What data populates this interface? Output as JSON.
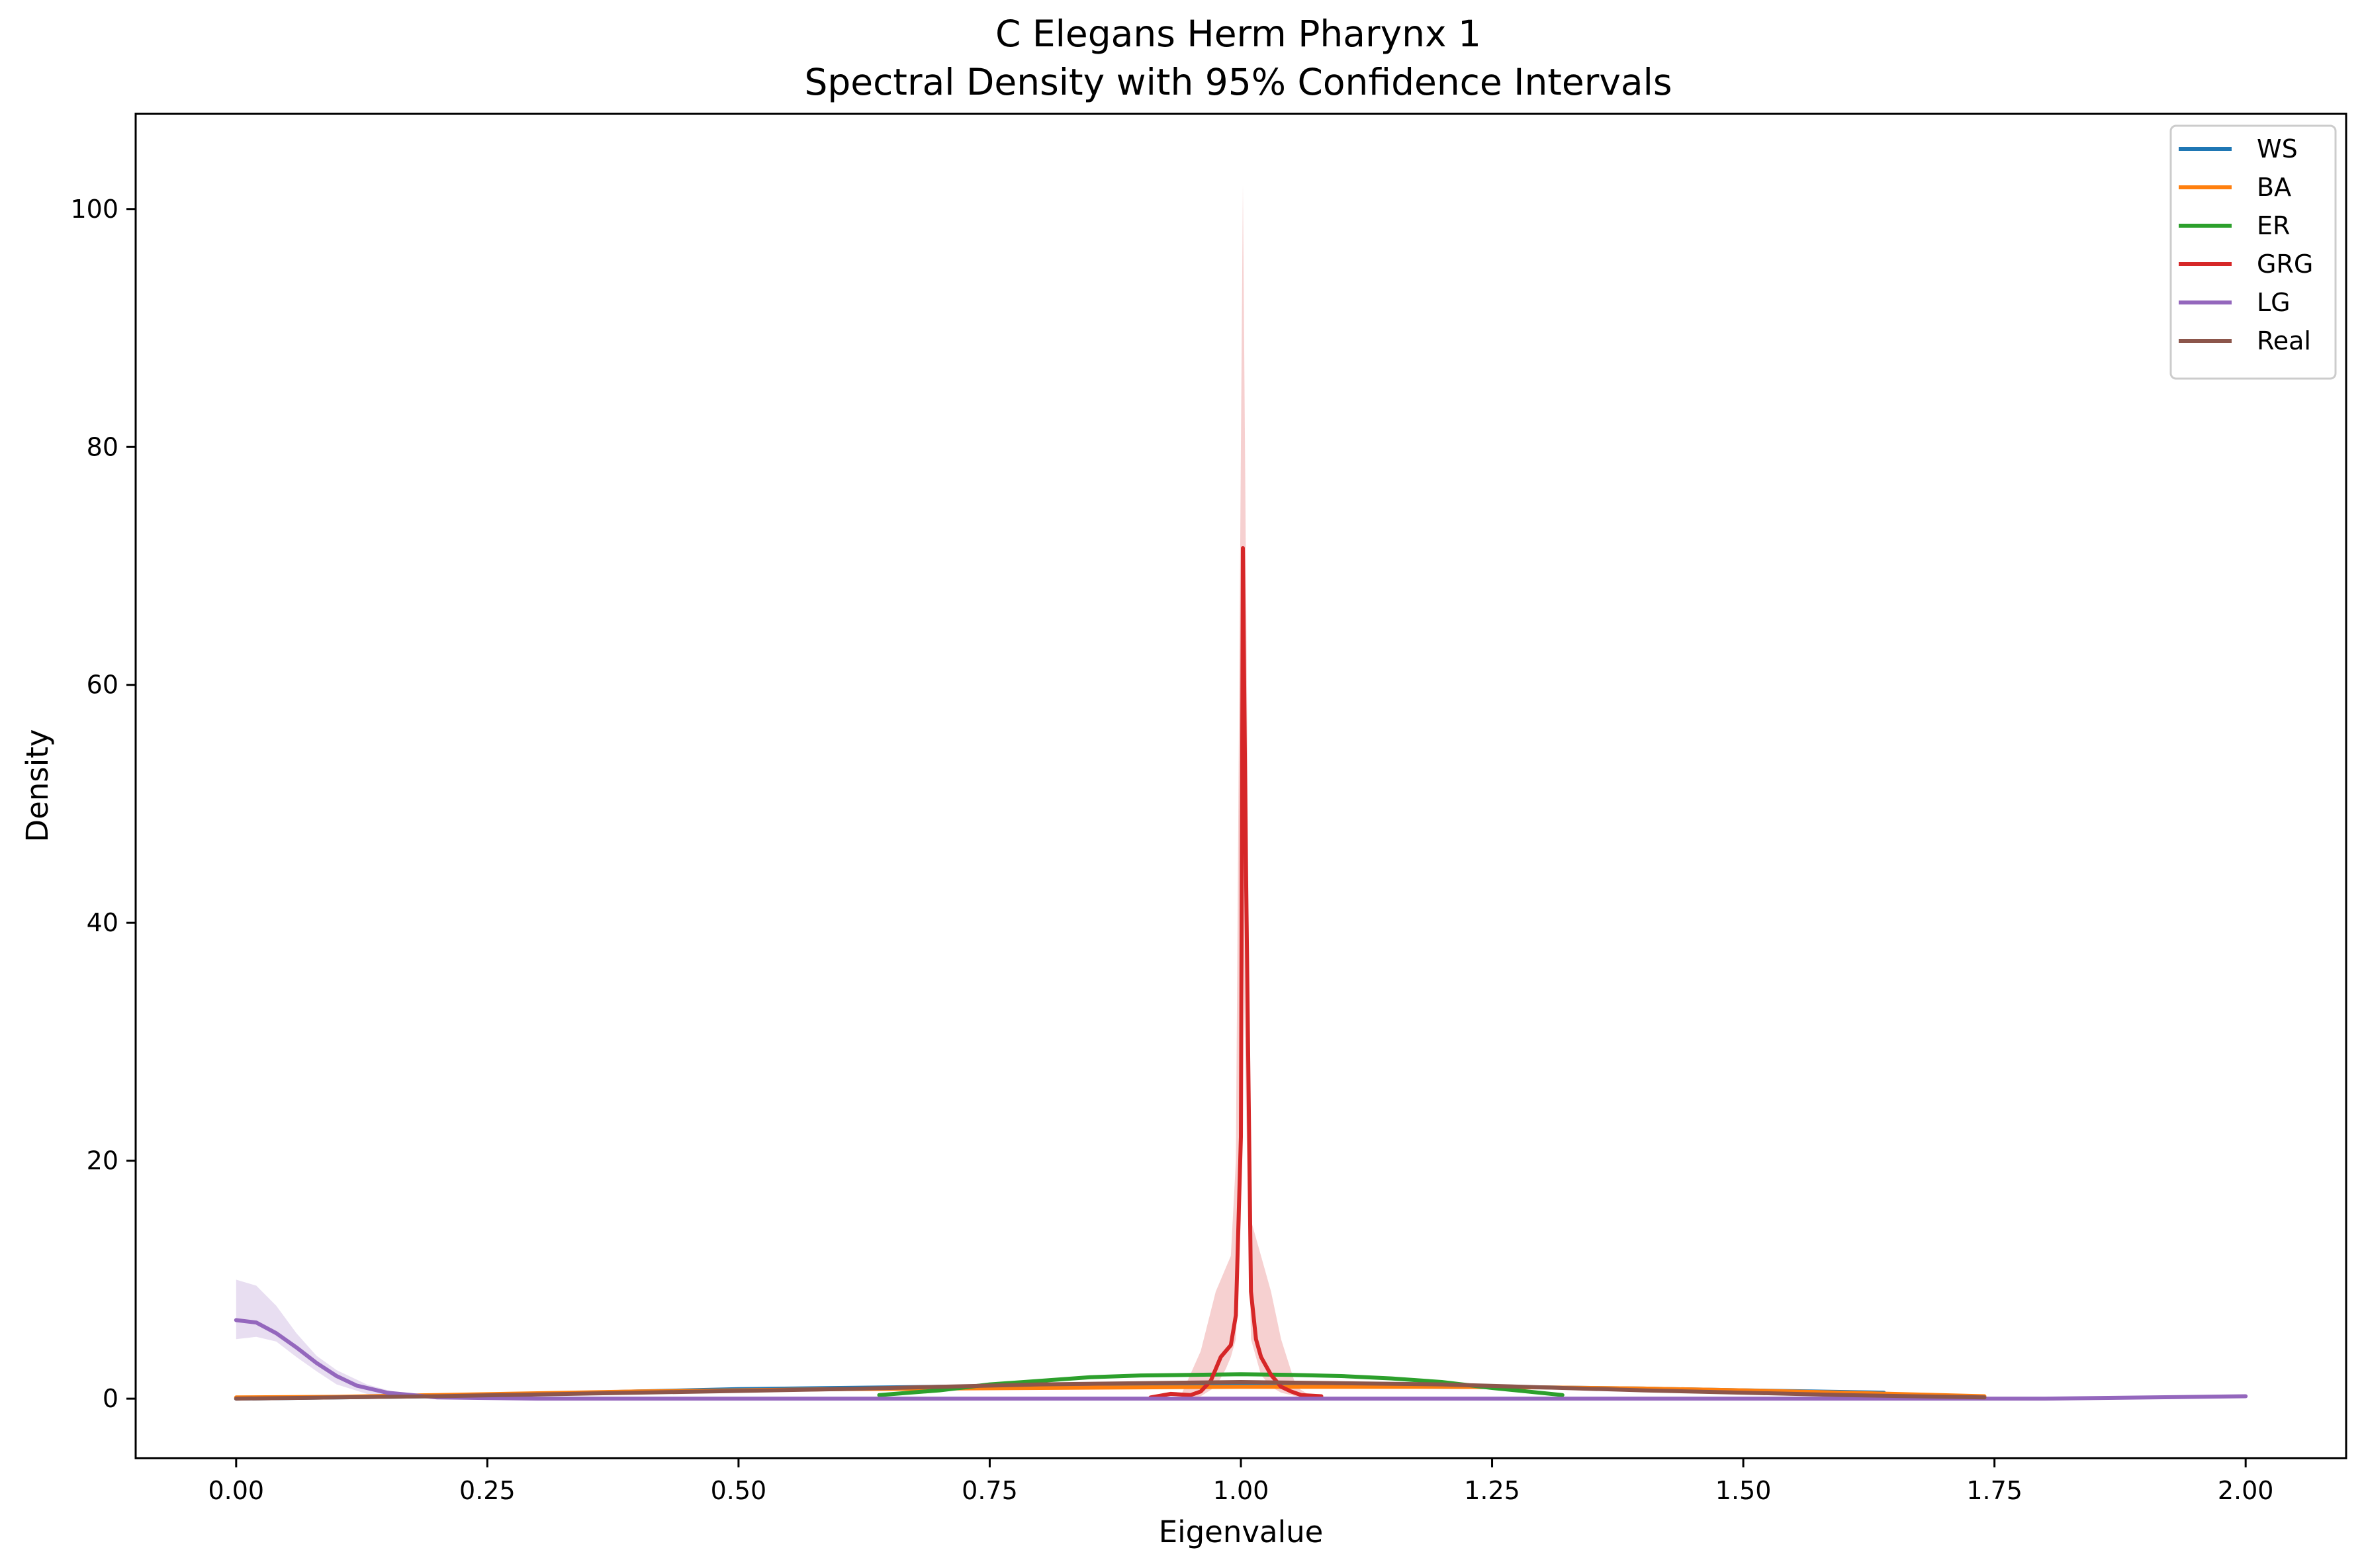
{
  "chart_data": {
    "type": "line",
    "title": "C Elegans Herm Pharynx 1",
    "subtitle": "Spectral Density with 95% Confidence Intervals",
    "xlabel": "Eigenvalue",
    "ylabel": "Density",
    "xlim": [
      -0.1,
      2.1
    ],
    "ylim": [
      -5,
      108
    ],
    "xticks": [
      "0.00",
      "0.25",
      "0.50",
      "0.75",
      "1.00",
      "1.25",
      "1.50",
      "1.75",
      "2.00"
    ],
    "xtick_values": [
      0,
      0.25,
      0.5,
      0.75,
      1.0,
      1.25,
      1.5,
      1.75,
      2.0
    ],
    "yticks": [
      "0",
      "20",
      "40",
      "60",
      "80",
      "100"
    ],
    "ytick_values": [
      0,
      20,
      40,
      60,
      80,
      100
    ],
    "grid": false,
    "legend_position": "top-right",
    "series": [
      {
        "name": "WS",
        "color": "#1f77b4",
        "x": [
          0,
          0.1,
          0.2,
          0.3,
          0.4,
          0.5,
          0.6,
          0.7,
          0.8,
          0.9,
          1.0,
          1.1,
          1.2,
          1.3,
          1.4,
          1.5,
          1.64
        ],
        "y": [
          0.0,
          0.1,
          0.2,
          0.4,
          0.6,
          0.8,
          0.9,
          1.0,
          1.05,
          1.1,
          1.1,
          1.05,
          1.0,
          0.95,
          0.85,
          0.7,
          0.5
        ]
      },
      {
        "name": "BA",
        "color": "#ff7f0e",
        "x": [
          0,
          0.1,
          0.2,
          0.3,
          0.4,
          0.5,
          0.6,
          0.7,
          0.8,
          0.9,
          1.0,
          1.1,
          1.2,
          1.3,
          1.4,
          1.5,
          1.6,
          1.74
        ],
        "y": [
          0.1,
          0.15,
          0.3,
          0.45,
          0.6,
          0.7,
          0.8,
          0.85,
          0.9,
          0.95,
          1.0,
          1.0,
          1.0,
          0.95,
          0.85,
          0.7,
          0.5,
          0.2
        ]
      },
      {
        "name": "ER",
        "color": "#2ca02c",
        "x": [
          0.64,
          0.7,
          0.75,
          0.8,
          0.85,
          0.9,
          0.95,
          1.0,
          1.05,
          1.1,
          1.15,
          1.2,
          1.25,
          1.32
        ],
        "y": [
          0.3,
          0.7,
          1.2,
          1.5,
          1.8,
          1.95,
          2.0,
          2.05,
          2.0,
          1.9,
          1.7,
          1.4,
          0.9,
          0.3
        ]
      },
      {
        "name": "GRG",
        "color": "#d62728",
        "x": [
          0.91,
          0.93,
          0.95,
          0.96,
          0.97,
          0.98,
          0.99,
          0.995,
          1.0,
          1.002,
          1.005,
          1.01,
          1.015,
          1.02,
          1.03,
          1.04,
          1.05,
          1.06,
          1.08
        ],
        "y": [
          0.1,
          0.4,
          0.3,
          0.6,
          1.5,
          3.5,
          4.5,
          7,
          22,
          71.5,
          45,
          9,
          5,
          3.5,
          2,
          1,
          0.6,
          0.3,
          0.2
        ]
      },
      {
        "name": "LG",
        "color": "#9467bd",
        "x": [
          0.0,
          0.02,
          0.04,
          0.06,
          0.08,
          0.1,
          0.12,
          0.15,
          0.2,
          0.3,
          0.5,
          1.0,
          1.5,
          1.8,
          2.0
        ],
        "y": [
          6.6,
          6.4,
          5.5,
          4.3,
          3.0,
          1.9,
          1.1,
          0.5,
          0.1,
          0.0,
          0.0,
          0.0,
          0.0,
          0.0,
          0.2
        ]
      },
      {
        "name": "Real",
        "color": "#8c564b",
        "x": [
          0.0,
          0.2,
          0.4,
          0.6,
          0.8,
          1.0,
          1.2,
          1.4,
          1.6,
          1.74
        ],
        "y": [
          0.0,
          0.2,
          0.5,
          0.8,
          1.2,
          1.4,
          1.2,
          0.7,
          0.3,
          0.1
        ]
      }
    ],
    "confidence_bands": [
      {
        "series": "LG",
        "color": "#9467bd",
        "x": [
          0.0,
          0.02,
          0.04,
          0.06,
          0.08,
          0.1,
          0.13,
          0.16,
          0.2,
          0.25
        ],
        "lower": [
          5.0,
          5.2,
          4.8,
          3.5,
          2.3,
          1.2,
          0.4,
          0.1,
          0.0,
          0.0
        ],
        "upper": [
          10.0,
          9.5,
          7.8,
          5.5,
          3.6,
          2.4,
          1.2,
          0.5,
          0.2,
          0.0
        ]
      },
      {
        "series": "GRG",
        "color": "#d62728",
        "x": [
          0.94,
          0.96,
          0.975,
          0.985,
          0.99,
          0.995,
          1.0,
          1.002,
          1.005,
          1.01,
          1.02,
          1.03,
          1.04,
          1.055,
          1.07
        ],
        "lower": [
          0.0,
          0.2,
          1.0,
          2.5,
          3.5,
          5.0,
          15.0,
          40.0,
          25.0,
          5.0,
          2.0,
          1.0,
          0.5,
          0.2,
          0.0
        ],
        "upper": [
          0.2,
          4.0,
          9.0,
          11.0,
          12.0,
          20.0,
          80.0,
          102.0,
          70.0,
          15.0,
          12.0,
          9.0,
          5.0,
          1.0,
          0.2
        ]
      }
    ]
  }
}
